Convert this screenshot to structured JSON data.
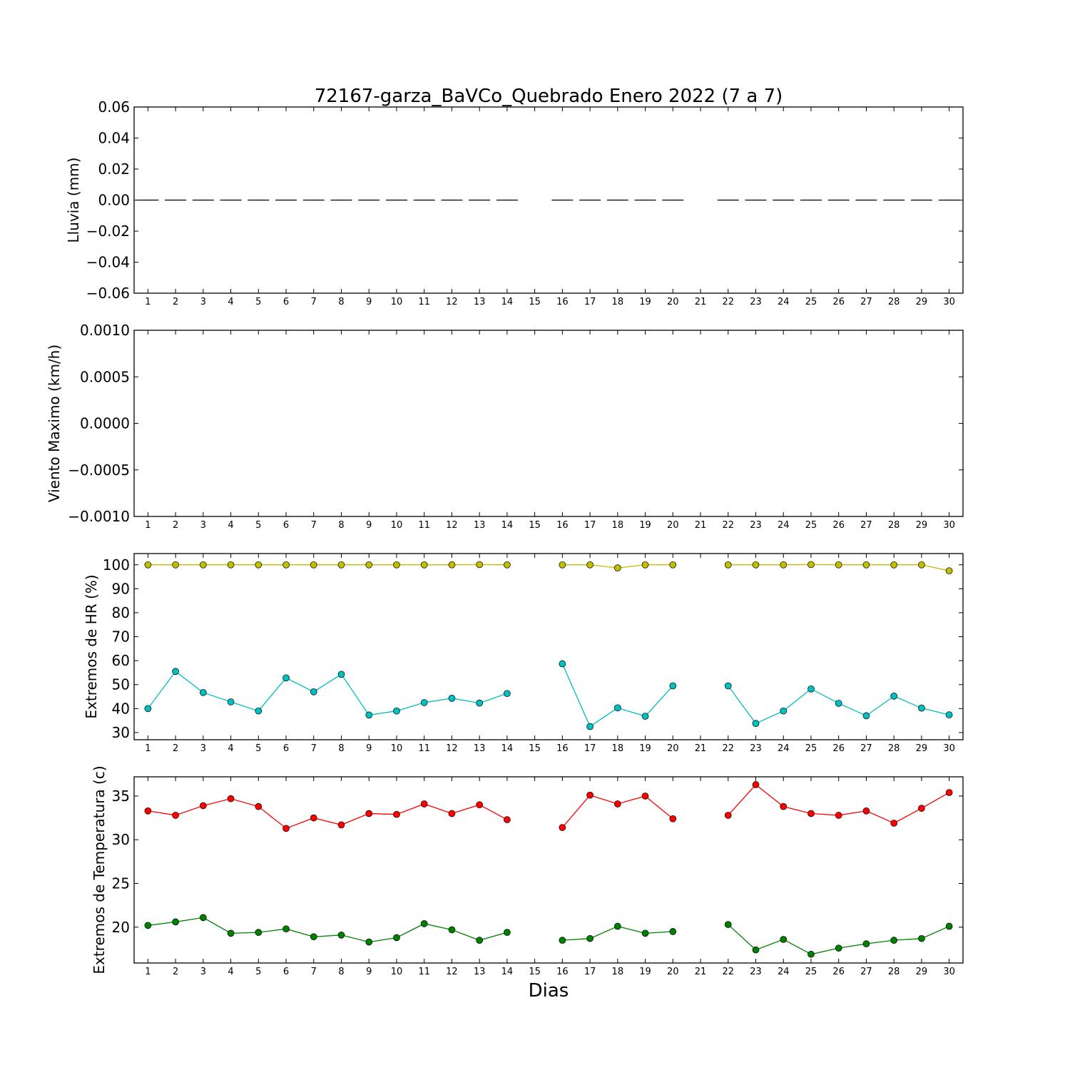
{
  "title": "72167-garza_BaVCo_Quebrado Enero 2022  (7 a 7)",
  "xlabel": "Dias",
  "x_ticks": [
    1,
    2,
    3,
    4,
    5,
    6,
    7,
    8,
    9,
    10,
    11,
    12,
    13,
    14,
    15,
    16,
    17,
    18,
    19,
    20,
    21,
    22,
    23,
    24,
    25,
    26,
    27,
    28,
    29,
    30
  ],
  "chart_data": [
    {
      "type": "line",
      "ylabel": "Lluvia (mm)",
      "ylim": [
        -0.06,
        0.06
      ],
      "y_ticks": [
        -0.06,
        -0.04,
        -0.02,
        0.0,
        0.02,
        0.04,
        0.06
      ],
      "y_tick_labels": [
        "−0.06",
        "−0.04",
        "−0.02",
        "0.00",
        "0.02",
        "0.04",
        "0.06"
      ],
      "x": [
        1,
        2,
        3,
        4,
        5,
        6,
        7,
        8,
        9,
        10,
        11,
        12,
        13,
        14,
        15,
        16,
        17,
        18,
        19,
        20,
        21,
        22,
        23,
        24,
        25,
        26,
        27,
        28,
        29,
        30
      ],
      "series": [
        {
          "style": "bar-dash",
          "color": "#000000",
          "values": [
            0,
            0,
            0,
            0,
            0,
            0,
            0,
            0,
            0,
            0,
            0,
            0,
            0,
            0,
            null,
            0,
            0,
            0,
            0,
            0,
            null,
            0,
            0,
            0,
            0,
            0,
            0,
            0,
            0,
            0
          ]
        }
      ]
    },
    {
      "type": "line",
      "ylabel": "Viento Maximo (km/h)",
      "ylim": [
        -0.001,
        0.001
      ],
      "y_ticks": [
        -0.001,
        -0.0005,
        0.0,
        0.0005,
        0.001
      ],
      "y_tick_labels": [
        "−0.0010",
        "−0.0005",
        "0.0000",
        "0.0005",
        "0.0010"
      ],
      "x": [
        1,
        2,
        3,
        4,
        5,
        6,
        7,
        8,
        9,
        10,
        11,
        12,
        13,
        14,
        15,
        16,
        17,
        18,
        19,
        20,
        21,
        22,
        23,
        24,
        25,
        26,
        27,
        28,
        29,
        30
      ],
      "series": []
    },
    {
      "type": "line",
      "ylabel": "Extremos de HR (%)",
      "ylim": [
        27,
        104.7
      ],
      "y_ticks": [
        30,
        40,
        50,
        60,
        70,
        80,
        90,
        100
      ],
      "y_tick_labels": [
        "30",
        "40",
        "50",
        "60",
        "70",
        "80",
        "90",
        "100"
      ],
      "x": [
        1,
        2,
        3,
        4,
        5,
        6,
        7,
        8,
        9,
        10,
        11,
        12,
        13,
        14,
        15,
        16,
        17,
        18,
        19,
        20,
        21,
        22,
        23,
        24,
        25,
        26,
        27,
        28,
        29,
        30
      ],
      "series": [
        {
          "color": "#bfbf00",
          "values": [
            100,
            100,
            100,
            100,
            100,
            100,
            100,
            100,
            100,
            100,
            100,
            100,
            100.1,
            100,
            null,
            100,
            100,
            98.7,
            100,
            100,
            null,
            100,
            100,
            100,
            100.1,
            100,
            100,
            100,
            100,
            97.5
          ]
        },
        {
          "color": "#00bfbf",
          "values": [
            40,
            55.5,
            46.7,
            42.8,
            39,
            52.8,
            47,
            54.3,
            37.3,
            39,
            42.5,
            44.3,
            42.3,
            46.3,
            null,
            58.7,
            32.5,
            40.3,
            36.8,
            49.5,
            null,
            49.5,
            33.8,
            39,
            48.2,
            42.2,
            37,
            45.2,
            40.2,
            37.4
          ]
        }
      ]
    },
    {
      "type": "line",
      "ylabel": "Extremos de Temperatura (c)",
      "ylim": [
        15.9,
        37.2
      ],
      "y_ticks": [
        20,
        25,
        30,
        35
      ],
      "y_tick_labels": [
        "20",
        "25",
        "30",
        "35"
      ],
      "x": [
        1,
        2,
        3,
        4,
        5,
        6,
        7,
        8,
        9,
        10,
        11,
        12,
        13,
        14,
        15,
        16,
        17,
        18,
        19,
        20,
        21,
        22,
        23,
        24,
        25,
        26,
        27,
        28,
        29,
        30
      ],
      "series": [
        {
          "color": "#ff0000",
          "values": [
            33.3,
            32.8,
            33.9,
            34.7,
            33.8,
            31.3,
            32.5,
            31.7,
            33,
            32.9,
            34.1,
            33,
            34,
            32.3,
            null,
            31.4,
            35.1,
            34.1,
            35,
            32.4,
            null,
            32.8,
            36.3,
            33.8,
            33,
            32.8,
            33.3,
            31.9,
            33.6,
            35.4
          ]
        },
        {
          "color": "#008000",
          "values": [
            20.2,
            20.6,
            21.1,
            19.3,
            19.4,
            19.8,
            18.9,
            19.1,
            18.3,
            18.8,
            20.4,
            19.7,
            18.5,
            19.4,
            null,
            18.5,
            18.7,
            20.1,
            19.3,
            19.5,
            null,
            20.3,
            17.4,
            18.6,
            16.9,
            17.6,
            18.1,
            18.5,
            18.7,
            20.1
          ]
        }
      ]
    }
  ]
}
